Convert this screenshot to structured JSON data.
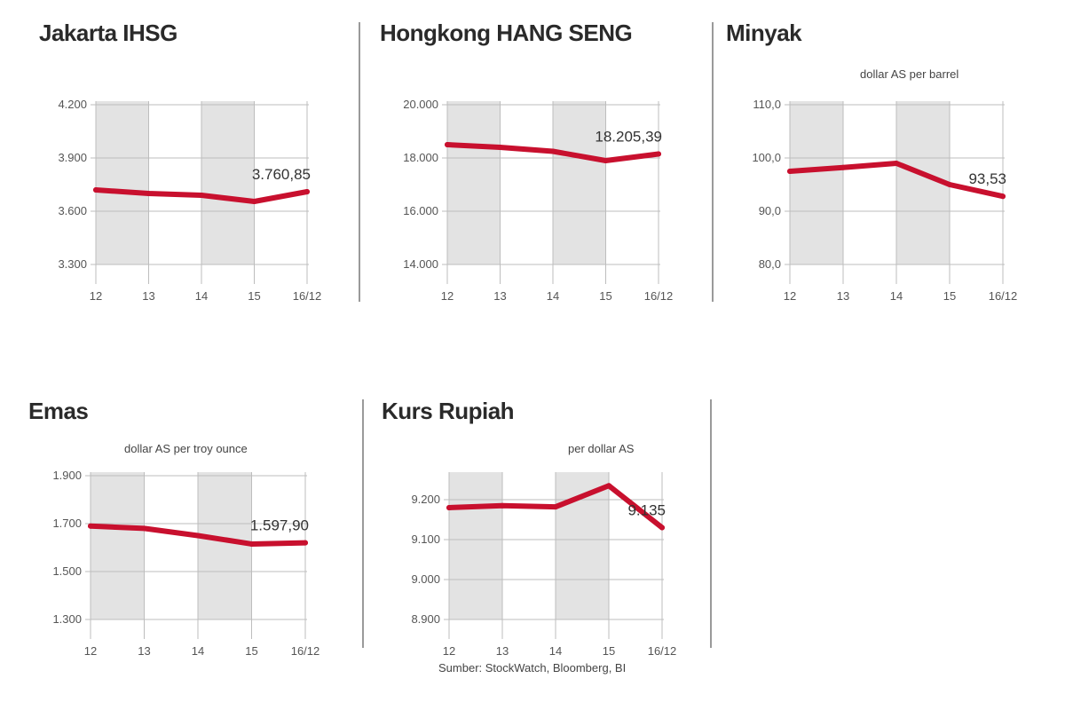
{
  "colors": {
    "line": "#c8102e",
    "band": "#e3e3e3",
    "grid": "#bdbdbd",
    "axis": "#555555"
  },
  "source": "Sumber: StockWatch, Bloomberg, BI",
  "chart_data": [
    {
      "type": "line",
      "title": "Jakarta IHSG",
      "unit": "",
      "categories": [
        "12",
        "13",
        "14",
        "15",
        "16/12"
      ],
      "values": [
        3720,
        3700,
        3690,
        3655,
        3710
      ],
      "ylim": [
        3300,
        4200
      ],
      "yticks": [
        3300,
        3600,
        3900,
        4200
      ],
      "ytick_labels": [
        "3.300",
        "3.600",
        "3.900",
        "4.200"
      ],
      "annotation": "3.760,85",
      "grid": true,
      "shaded_bands": [
        [
          0,
          1
        ],
        [
          2,
          3
        ]
      ]
    },
    {
      "type": "line",
      "title": "Hongkong HANG SENG",
      "unit": "",
      "categories": [
        "12",
        "13",
        "14",
        "15",
        "16/12"
      ],
      "values": [
        18500,
        18400,
        18250,
        17900,
        18150
      ],
      "ylim": [
        14000,
        20000
      ],
      "yticks": [
        14000,
        16000,
        18000,
        20000
      ],
      "ytick_labels": [
        "14.000",
        "16.000",
        "18.000",
        "20.000"
      ],
      "annotation": "18.205,39",
      "grid": true,
      "shaded_bands": [
        [
          0,
          1
        ],
        [
          2,
          3
        ]
      ]
    },
    {
      "type": "line",
      "title": "Minyak",
      "unit": "dollar AS per barrel",
      "categories": [
        "12",
        "13",
        "14",
        "15",
        "16/12"
      ],
      "values": [
        97.5,
        98.2,
        99.0,
        95.0,
        92.8
      ],
      "ylim": [
        80,
        110
      ],
      "yticks": [
        80,
        90,
        100,
        110
      ],
      "ytick_labels": [
        "80,0",
        "90,0",
        "100,0",
        "110,0"
      ],
      "annotation": "93,53",
      "grid": true,
      "shaded_bands": [
        [
          0,
          1
        ],
        [
          2,
          3
        ]
      ]
    },
    {
      "type": "line",
      "title": "Emas",
      "unit": "dollar AS per troy ounce",
      "categories": [
        "12",
        "13",
        "14",
        "15",
        "16/12"
      ],
      "values": [
        1690,
        1680,
        1650,
        1615,
        1620
      ],
      "ylim": [
        1300,
        1900
      ],
      "yticks": [
        1300,
        1500,
        1700,
        1900
      ],
      "ytick_labels": [
        "1.300",
        "1.500",
        "1.700",
        "1.900"
      ],
      "annotation": "1.597,90",
      "grid": true,
      "shaded_bands": [
        [
          0,
          1
        ],
        [
          2,
          3
        ]
      ]
    },
    {
      "type": "line",
      "title": "Kurs Rupiah",
      "unit": "per dollar AS",
      "categories": [
        "12",
        "13",
        "14",
        "15",
        "16/12"
      ],
      "values": [
        9180,
        9185,
        9182,
        9235,
        9130
      ],
      "ylim": [
        8900,
        9260
      ],
      "yticks": [
        8900,
        9000,
        9100,
        9200
      ],
      "ytick_labels": [
        "8.900",
        "9.000",
        "9.100",
        "9.200"
      ],
      "annotation": "9.135",
      "grid": true,
      "shaded_bands": [
        [
          0,
          1
        ],
        [
          2,
          3
        ]
      ]
    }
  ]
}
